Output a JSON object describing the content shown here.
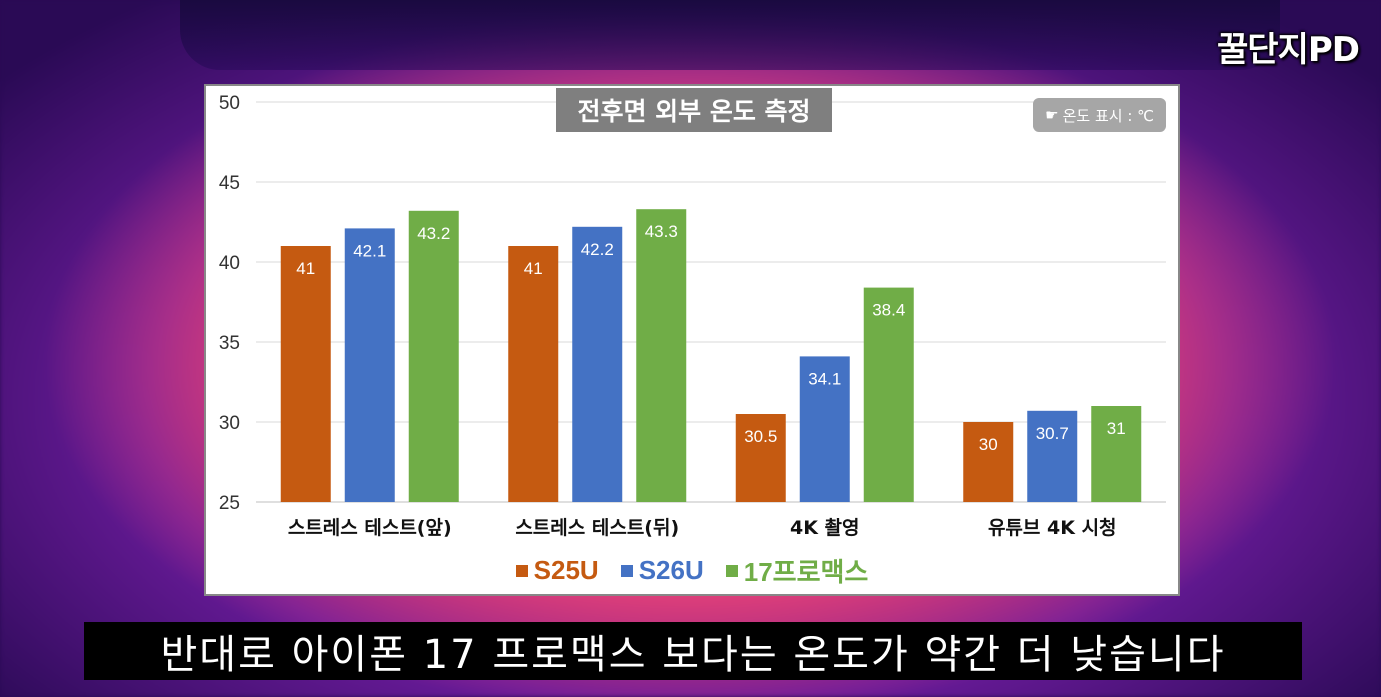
{
  "channel": {
    "logo": "꿀단지PD"
  },
  "subtitle": "반대로 아이폰 17 프로맥스 보다는 온도가 약간 더 낮습니다",
  "chart_data": {
    "type": "bar",
    "title": "전후면 외부 온도 측정",
    "unit_badge": "온도 표시 : ℃",
    "unit_icon": "hand-pointing-icon",
    "categories": [
      "스트레스 테스트(앞)",
      "스트레스 테스트(뒤)",
      "4K 촬영",
      "유튜브 4K 시청"
    ],
    "series": [
      {
        "name": "S25U",
        "color": "#c55a11",
        "values": [
          41,
          41,
          30.5,
          30
        ]
      },
      {
        "name": "S26U",
        "color": "#4472c4",
        "values": [
          42.1,
          42.2,
          34.1,
          30.7
        ]
      },
      {
        "name": "17프로맥스",
        "color": "#70ad47",
        "values": [
          43.2,
          43.3,
          38.4,
          31
        ]
      }
    ],
    "ylim": [
      25,
      50
    ],
    "yticks": [
      25,
      30,
      35,
      40,
      45,
      50
    ],
    "grid": true,
    "legend_position": "bottom"
  }
}
